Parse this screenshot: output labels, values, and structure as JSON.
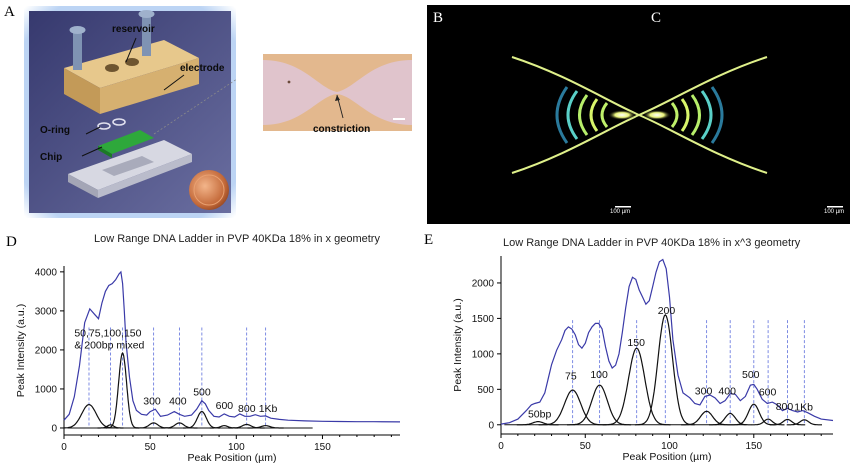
{
  "panels": {
    "a": {
      "letter": "A",
      "labels": {
        "reservoir": "reservoir",
        "electrode": "electrode",
        "oring": "O-ring",
        "chip": "Chip",
        "constriction": "constriction"
      }
    },
    "b": {
      "letter": "B",
      "scale": "100 µm"
    },
    "c": {
      "letter": "C",
      "scale": "100 µm"
    },
    "d": {
      "letter": "D"
    },
    "e": {
      "letter": "E"
    }
  },
  "chart_data": [
    {
      "type": "line",
      "title": "Low Range DNA Ladder in PVP 40KDa 18% in x geometry",
      "xlabel": "Peak Position (µm)",
      "ylabel": "Peak Intensity (a.u.)",
      "xlim": [
        0,
        195
      ],
      "ylim": [
        -180,
        4150
      ],
      "xticks": [
        0,
        50,
        100,
        150
      ],
      "yticks": [
        0,
        1000,
        2000,
        3000,
        4000
      ],
      "series": [
        {
          "role": "measured",
          "color": "#3a3aa8",
          "x": [
            0,
            3,
            6,
            9,
            12,
            15,
            18,
            20,
            22,
            24,
            26,
            28,
            30,
            32,
            33,
            34,
            35,
            36,
            38,
            40,
            42,
            45,
            48,
            50,
            53,
            56,
            60,
            64,
            67,
            70,
            74,
            77,
            80,
            82,
            84,
            87,
            90,
            93,
            96,
            99,
            102,
            105,
            108,
            111,
            114,
            117,
            120,
            125,
            130,
            140,
            150,
            160,
            170,
            180,
            195
          ],
          "y": [
            200,
            350,
            800,
            1600,
            2700,
            3050,
            2900,
            2800,
            3200,
            3500,
            3650,
            3700,
            3800,
            3950,
            4000,
            3700,
            3000,
            2200,
            1300,
            700,
            450,
            350,
            330,
            420,
            480,
            300,
            330,
            420,
            350,
            300,
            330,
            480,
            700,
            620,
            450,
            300,
            280,
            360,
            300,
            280,
            360,
            300,
            300,
            340,
            300,
            310,
            250,
            220,
            200,
            180,
            170,
            165,
            160,
            160,
            155
          ]
        },
        {
          "role": "fit",
          "color": "#111111",
          "peaks": [
            {
              "center": 14.5,
              "amp": 600,
              "sigma": 4.2
            },
            {
              "center": 27,
              "amp": 80,
              "sigma": 1.8
            },
            {
              "center": 34,
              "amp": 1920,
              "sigma": 2.3
            },
            {
              "center": 52,
              "amp": 130,
              "sigma": 2.5
            },
            {
              "center": 67,
              "amp": 130,
              "sigma": 2.5
            },
            {
              "center": 80,
              "amp": 420,
              "sigma": 2.6
            },
            {
              "center": 93,
              "amp": 60,
              "sigma": 2
            },
            {
              "center": 106,
              "amp": 90,
              "sigma": 2.5
            },
            {
              "center": 117,
              "amp": 60,
              "sigma": 2.5
            }
          ]
        }
      ],
      "markers": [
        14.5,
        27,
        34,
        52,
        67,
        80,
        106,
        117
      ],
      "annotations": [
        {
          "text": "50,75,100,150",
          "x": 6,
          "y": 2350
        },
        {
          "text": "& 200bp mixed",
          "x": 6,
          "y": 2030
        },
        {
          "text": "300",
          "x": 46,
          "y": 600
        },
        {
          "text": "400",
          "x": 61,
          "y": 600
        },
        {
          "text": "500",
          "x": 75,
          "y": 830
        },
        {
          "text": "600",
          "x": 88,
          "y": 480
        },
        {
          "text": "800",
          "x": 101,
          "y": 410
        },
        {
          "text": "1Kb",
          "x": 113,
          "y": 410
        }
      ]
    },
    {
      "type": "line",
      "title": "Low Range DNA Ladder in PVP 40KDa 18% in x^3 geometry",
      "xlabel": "Peak Position (µm)",
      "ylabel": "Peak Intensity (a.u.)",
      "xlim": [
        0,
        197
      ],
      "ylim": [
        -130,
        2380
      ],
      "xticks": [
        0,
        50,
        100,
        150
      ],
      "yticks": [
        0,
        500,
        1000,
        1500,
        2000
      ],
      "series": [
        {
          "role": "measured",
          "color": "#3a3aa8",
          "x": [
            0,
            5,
            10,
            15,
            18,
            20,
            23,
            26,
            28,
            30,
            33,
            36,
            38,
            40,
            42,
            44,
            46,
            48,
            50,
            52,
            54,
            56,
            58,
            60,
            62,
            64,
            66,
            68,
            70,
            72,
            74,
            76,
            78,
            80,
            82,
            84,
            86,
            88,
            90,
            92,
            94,
            96,
            98,
            100,
            102,
            105,
            108,
            112,
            115,
            118,
            121,
            124,
            127,
            130,
            133,
            136,
            139,
            142,
            145,
            148,
            150,
            152,
            155,
            158,
            161,
            164,
            167,
            170,
            173,
            176,
            179,
            182,
            186,
            190,
            197
          ],
          "y": [
            10,
            30,
            80,
            200,
            280,
            300,
            320,
            450,
            650,
            850,
            1050,
            1200,
            1330,
            1380,
            1350,
            1270,
            1130,
            1080,
            1150,
            1300,
            1380,
            1430,
            1430,
            1350,
            1100,
            900,
            800,
            840,
            1000,
            1300,
            1650,
            1950,
            2080,
            2050,
            1900,
            1800,
            1700,
            1750,
            1950,
            2150,
            2300,
            2330,
            2200,
            1800,
            1200,
            700,
            450,
            380,
            300,
            280,
            400,
            420,
            380,
            300,
            340,
            440,
            430,
            340,
            400,
            560,
            570,
            500,
            360,
            300,
            320,
            280,
            200,
            230,
            200,
            180,
            200,
            170,
            120,
            80,
            60
          ]
        },
        {
          "role": "fit",
          "color": "#111111",
          "peaks": [
            {
              "center": 22,
              "amp": 45,
              "sigma": 3
            },
            {
              "center": 42.5,
              "amp": 490,
              "sigma": 4.8
            },
            {
              "center": 58.5,
              "amp": 560,
              "sigma": 4.6
            },
            {
              "center": 80.5,
              "amp": 1080,
              "sigma": 4.8
            },
            {
              "center": 97.5,
              "amp": 1550,
              "sigma": 4.3
            },
            {
              "center": 122,
              "amp": 190,
              "sigma": 3.6
            },
            {
              "center": 136,
              "amp": 160,
              "sigma": 3
            },
            {
              "center": 150,
              "amp": 290,
              "sigma": 3.2
            },
            {
              "center": 158.5,
              "amp": 80,
              "sigma": 2.4
            },
            {
              "center": 170,
              "amp": 75,
              "sigma": 2.5
            },
            {
              "center": 180,
              "amp": 70,
              "sigma": 2.5
            }
          ]
        }
      ],
      "markers": [
        42.5,
        58.5,
        80.5,
        97.5,
        122,
        136,
        150,
        158.5,
        170,
        180
      ],
      "annotations": [
        {
          "text": "50bp",
          "x": 16,
          "y": 100
        },
        {
          "text": "75",
          "x": 38,
          "y": 640
        },
        {
          "text": "100",
          "x": 53,
          "y": 660
        },
        {
          "text": "150",
          "x": 75,
          "y": 1110
        },
        {
          "text": "200",
          "x": 93,
          "y": 1560
        },
        {
          "text": "300",
          "x": 115,
          "y": 430
        },
        {
          "text": "400",
          "x": 129,
          "y": 430
        },
        {
          "text": "500",
          "x": 143,
          "y": 660
        },
        {
          "text": "600",
          "x": 153,
          "y": 410
        },
        {
          "text": "800",
          "x": 163,
          "y": 210
        },
        {
          "text": "1Kb",
          "x": 174,
          "y": 200
        }
      ]
    }
  ]
}
